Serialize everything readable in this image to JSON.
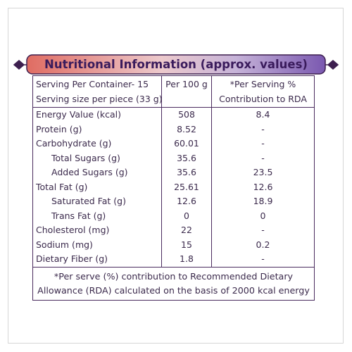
{
  "header": {
    "title": "Nutritional Information (approx. values)"
  },
  "table": {
    "head": [
      [
        "Serving Per Container- 15",
        "Serving size per piece (33 g)"
      ],
      "Per 100 g",
      [
        "*Per Serving %",
        "Contribution to RDA"
      ]
    ],
    "rows": [
      [
        "Energy Value (kcal)",
        "508",
        "8.4"
      ],
      [
        "Protein (g)",
        "8.52",
        "-"
      ],
      [
        "Carbohydrate (g)",
        "60.01",
        "-"
      ],
      [
        "Total Sugars (g)",
        "35.6",
        "-"
      ],
      [
        "Added Sugars (g)",
        "35.6",
        "23.5"
      ],
      [
        "Total Fat (g)",
        "25.61",
        "12.6"
      ],
      [
        "Saturated Fat (g)",
        "12.6",
        "18.9"
      ],
      [
        "Trans Fat (g)",
        "0",
        "0"
      ],
      [
        "Cholesterol (mg)",
        "22",
        "-"
      ],
      [
        "Sodium (mg)",
        "15",
        "0.2"
      ],
      [
        "Dietary Fiber (g)",
        "1.8",
        "-"
      ]
    ],
    "footnote": [
      "*Per serve (%) contribution to Recommended Dietary",
      "Allowance (RDA) calculated on the basis of 2000 kcal energy"
    ]
  }
}
